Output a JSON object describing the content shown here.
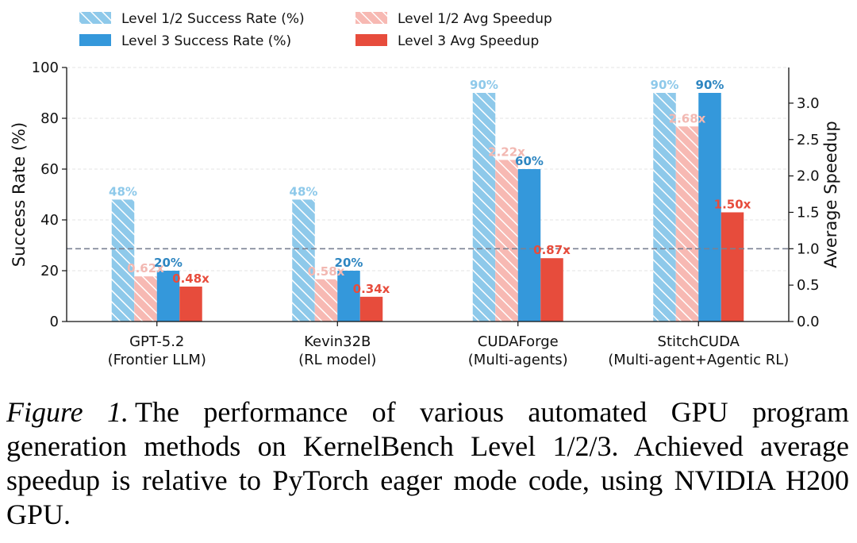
{
  "chart_data": {
    "type": "bar",
    "categories": [
      [
        "GPT-5.2",
        "(Frontier LLM)"
      ],
      [
        "Kevin32B",
        "(RL model)"
      ],
      [
        "CUDAForge",
        "(Multi-agents)"
      ],
      [
        "StitchCUDA",
        "(Multi-agent+Agentic RL)"
      ]
    ],
    "series": [
      {
        "name": "Level 1/2 Success Rate (%)",
        "axis": "left",
        "values": [
          48,
          48,
          90,
          90
        ],
        "labels": [
          "48%",
          "48%",
          "90%",
          "90%"
        ],
        "color": "#8ec9ea",
        "hatch": true,
        "label_color": "#8ec9ea"
      },
      {
        "name": "Level 1/2 Avg Speedup",
        "axis": "right",
        "values": [
          0.62,
          0.58,
          2.22,
          2.68
        ],
        "labels": [
          "0.62x",
          "0.58x",
          "2.22x",
          "2.68x"
        ],
        "color": "#f7b9b3",
        "hatch": true,
        "label_color": "#f2b8b2"
      },
      {
        "name": "Level 3 Success Rate (%)",
        "axis": "left",
        "values": [
          20,
          20,
          60,
          90
        ],
        "labels": [
          "20%",
          "20%",
          "60%",
          "90%"
        ],
        "color": "#3498db",
        "hatch": false,
        "label_color": "#2e86c1"
      },
      {
        "name": "Level 3 Avg Speedup",
        "axis": "right",
        "values": [
          0.48,
          0.34,
          0.87,
          1.5
        ],
        "labels": [
          "0.48x",
          "0.34x",
          "0.87x",
          "1.50x"
        ],
        "color": "#e74c3c",
        "hatch": false,
        "label_color": "#e74c3c"
      }
    ],
    "ylabel": "Success Rate (%)",
    "ylim": [
      0,
      100
    ],
    "yticks": [
      "0",
      "20",
      "40",
      "60",
      "80",
      "100"
    ],
    "y2label": "Average Speedup",
    "y2lim": [
      0,
      3.49
    ],
    "y2ticks": [
      "0.0",
      "0.5",
      "1.0",
      "1.5",
      "2.0",
      "2.5",
      "3.0"
    ],
    "reference_line": {
      "axis": "right",
      "value": 1.0
    },
    "grid": true,
    "legend_position": "top"
  },
  "caption": {
    "label": "Figure 1.",
    "text": "The performance of various automated GPU program generation methods on KernelBench Level 1/2/3. Achieved average speedup is relative to PyTorch eager mode code, using NVIDIA H200 GPU."
  }
}
